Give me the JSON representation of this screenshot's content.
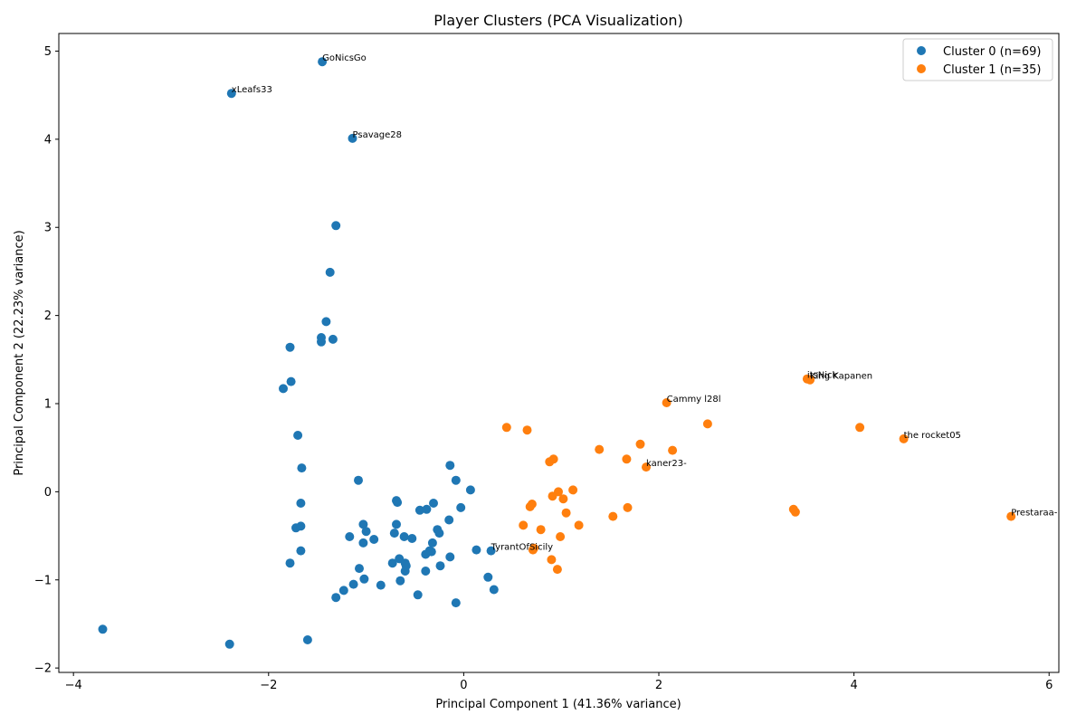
{
  "chart_data": {
    "type": "scatter",
    "title": "Player Clusters (PCA Visualization)",
    "xlabel": "Principal Component 1 (41.36% variance)",
    "ylabel": "Principal Component 2 (22.23% variance)",
    "xlim": [
      -4.15,
      6.1
    ],
    "ylim": [
      -2.05,
      5.2
    ],
    "xticks": [
      -4,
      -2,
      0,
      2,
      4,
      6
    ],
    "yticks": [
      -2,
      -1,
      0,
      1,
      2,
      3,
      4,
      5
    ],
    "grid": false,
    "legend_position": "upper-right",
    "series": [
      {
        "name": "Cluster 0 (n=69)",
        "color": "#1f77b4",
        "points": [
          [
            -1.45,
            4.88
          ],
          [
            -2.38,
            4.52
          ],
          [
            -1.14,
            4.01
          ],
          [
            -1.31,
            3.02
          ],
          [
            -1.37,
            2.49
          ],
          [
            -1.41,
            1.93
          ],
          [
            -1.46,
            1.75
          ],
          [
            -1.46,
            1.7
          ],
          [
            -1.34,
            1.73
          ],
          [
            -1.78,
            1.64
          ],
          [
            -1.77,
            1.25
          ],
          [
            -1.85,
            1.17
          ],
          [
            -1.7,
            0.64
          ],
          [
            -1.66,
            0.27
          ],
          [
            -1.08,
            0.13
          ],
          [
            -1.67,
            -0.13
          ],
          [
            -1.72,
            -0.41
          ],
          [
            -1.67,
            -0.39
          ],
          [
            -1.67,
            -0.67
          ],
          [
            -1.78,
            -0.81
          ],
          [
            -1.17,
            -0.51
          ],
          [
            -1.03,
            -0.37
          ],
          [
            -1.0,
            -0.45
          ],
          [
            -0.92,
            -0.54
          ],
          [
            -1.03,
            -0.58
          ],
          [
            -1.07,
            -0.87
          ],
          [
            -1.02,
            -0.99
          ],
          [
            -1.13,
            -1.05
          ],
          [
            -1.23,
            -1.12
          ],
          [
            -1.31,
            -1.2
          ],
          [
            -0.85,
            -1.06
          ],
          [
            -0.69,
            -0.1
          ],
          [
            -0.68,
            -0.12
          ],
          [
            -0.69,
            -0.37
          ],
          [
            -0.71,
            -0.47
          ],
          [
            -0.61,
            -0.51
          ],
          [
            -0.53,
            -0.53
          ],
          [
            -0.73,
            -0.81
          ],
          [
            -0.66,
            -0.76
          ],
          [
            -0.6,
            -0.81
          ],
          [
            -0.6,
            -0.9
          ],
          [
            -0.59,
            -0.84
          ],
          [
            -0.65,
            -1.01
          ],
          [
            -0.47,
            -1.17
          ],
          [
            -0.45,
            -0.21
          ],
          [
            -0.38,
            -0.2
          ],
          [
            -0.31,
            -0.13
          ],
          [
            -0.27,
            -0.43
          ],
          [
            -0.25,
            -0.47
          ],
          [
            -0.32,
            -0.58
          ],
          [
            -0.35,
            -0.67
          ],
          [
            -0.39,
            -0.71
          ],
          [
            -0.39,
            -0.9
          ],
          [
            -0.24,
            -0.84
          ],
          [
            -0.15,
            -0.32
          ],
          [
            -0.14,
            -0.74
          ],
          [
            -0.14,
            0.3
          ],
          [
            -0.08,
            0.13
          ],
          [
            -0.03,
            -0.18
          ],
          [
            0.07,
            0.02
          ],
          [
            0.13,
            -0.66
          ],
          [
            0.28,
            -0.67
          ],
          [
            0.25,
            -0.97
          ],
          [
            0.31,
            -1.11
          ],
          [
            -0.08,
            -1.26
          ],
          [
            -3.7,
            -1.56
          ],
          [
            -2.4,
            -1.73
          ],
          [
            -1.6,
            -1.68
          ],
          [
            -0.33,
            -0.68
          ]
        ]
      },
      {
        "name": "Cluster 1 (n=35)",
        "color": "#ff7f0e",
        "points": [
          [
            3.52,
            1.28
          ],
          [
            3.55,
            1.27
          ],
          [
            2.08,
            1.01
          ],
          [
            2.5,
            0.77
          ],
          [
            4.06,
            0.73
          ],
          [
            4.51,
            0.6
          ],
          [
            0.44,
            0.73
          ],
          [
            0.65,
            0.7
          ],
          [
            1.39,
            0.48
          ],
          [
            1.81,
            0.54
          ],
          [
            2.14,
            0.47
          ],
          [
            1.67,
            0.37
          ],
          [
            1.87,
            0.28
          ],
          [
            0.92,
            0.37
          ],
          [
            0.88,
            0.34
          ],
          [
            0.97,
            0.0
          ],
          [
            1.12,
            0.02
          ],
          [
            0.91,
            -0.05
          ],
          [
            1.02,
            -0.08
          ],
          [
            0.7,
            -0.14
          ],
          [
            0.68,
            -0.17
          ],
          [
            1.05,
            -0.24
          ],
          [
            1.68,
            -0.18
          ],
          [
            1.53,
            -0.28
          ],
          [
            3.38,
            -0.2
          ],
          [
            3.4,
            -0.23
          ],
          [
            5.61,
            -0.28
          ],
          [
            0.61,
            -0.38
          ],
          [
            0.79,
            -0.43
          ],
          [
            1.18,
            -0.38
          ],
          [
            0.99,
            -0.51
          ],
          [
            0.71,
            -0.66
          ],
          [
            0.9,
            -0.77
          ],
          [
            0.96,
            -0.88
          ],
          [
            0.72,
            -0.64
          ]
        ]
      }
    ],
    "annotations": [
      {
        "text": "GoNicsGo",
        "x": -1.45,
        "y": 4.88
      },
      {
        "text": "xLeafs33",
        "x": -2.38,
        "y": 4.52
      },
      {
        "text": "Psavage28",
        "x": -1.14,
        "y": 4.01
      },
      {
        "text": "TyrantOfSicily",
        "x": 0.28,
        "y": -0.67
      },
      {
        "text": "itsNick",
        "x": 3.52,
        "y": 1.28
      },
      {
        "text": "King Kapanen",
        "x": 3.55,
        "y": 1.27
      },
      {
        "text": "Cammy l28l",
        "x": 2.08,
        "y": 1.01
      },
      {
        "text": "the rocket05",
        "x": 4.51,
        "y": 0.6
      },
      {
        "text": "kaner23-",
        "x": 1.87,
        "y": 0.28
      },
      {
        "text": "Prestaraa-",
        "x": 5.61,
        "y": -0.28
      }
    ]
  }
}
